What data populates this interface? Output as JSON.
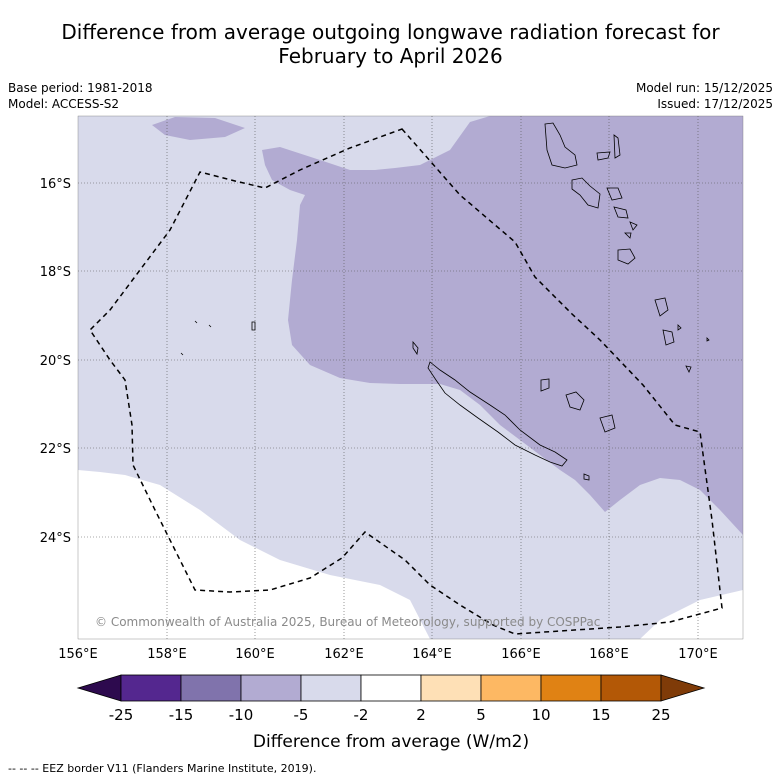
{
  "title_line1": "Difference from average outgoing longwave radiation forecast for",
  "title_line2": "February to April 2026",
  "base_period": "Base period: 1981-2018",
  "model": "Model: ACCESS-S2",
  "model_run": "Model run: 15/12/2025",
  "issued": "Issued: 17/12/2025",
  "copyright": "© Commonwealth of Australia 2025, Bureau of Meteorology, supported by COSPPac",
  "lon_labels": [
    "156°E",
    "158°E",
    "160°E",
    "162°E",
    "164°E",
    "166°E",
    "168°E",
    "170°E"
  ],
  "lat_labels": [
    "16°S",
    "18°S",
    "20°S",
    "22°S",
    "24°S"
  ],
  "colorbar": {
    "ticks": [
      "-25",
      "-15",
      "-10",
      "-5",
      "-2",
      "2",
      "5",
      "10",
      "15",
      "25"
    ],
    "colors": [
      "#2d0a4e",
      "#54278f",
      "#8073ac",
      "#b2abd2",
      "#d8daeb",
      "#ffffff",
      "#fee0b6",
      "#fdb863",
      "#e08214",
      "#b35806",
      "#7f3b08"
    ],
    "label": "Difference from average (W/m2)"
  },
  "legend": "--  --  -- EEZ border V11 (Flanders Marine Institute, 2019)."
}
